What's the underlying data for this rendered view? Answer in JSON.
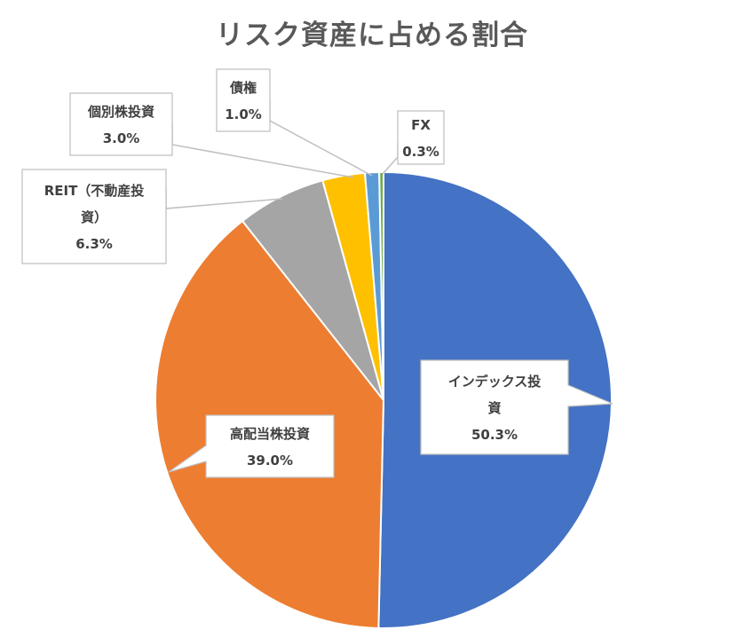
{
  "chart_data": {
    "type": "pie",
    "title": "リスク資産に占める割合",
    "slices": [
      {
        "name": "インデックス投資",
        "value": 50.3,
        "display": "50.3%",
        "color": "#4472C4",
        "label_lines": [
          "インデックス投",
          "資",
          "50.3%"
        ]
      },
      {
        "name": "高配当株投資",
        "value": 39.0,
        "display": "39.0%",
        "color": "#ED7D31",
        "label_lines": [
          "高配当株投資",
          "39.0%"
        ]
      },
      {
        "name": "REIT（不動産投資）",
        "value": 6.3,
        "display": "6.3%",
        "color": "#A5A5A5",
        "label_lines": [
          "REIT（不動産投",
          "資）",
          "6.3%"
        ]
      },
      {
        "name": "個別株投資",
        "value": 3.0,
        "display": "3.0%",
        "color": "#FFC000",
        "label_lines": [
          "個別株投資",
          "3.0%"
        ]
      },
      {
        "name": "債権",
        "value": 1.0,
        "display": "1.0%",
        "color": "#5B9BD5",
        "label_lines": [
          "債権",
          "1.0%"
        ]
      },
      {
        "name": "FX",
        "value": 0.3,
        "display": "0.3%",
        "color": "#70AD47",
        "label_lines": [
          "FX",
          "0.3%"
        ]
      }
    ]
  }
}
